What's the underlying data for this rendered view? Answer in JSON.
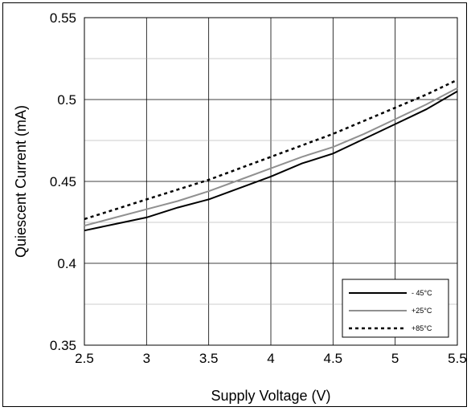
{
  "chart_data": {
    "type": "line",
    "xlabel": "Supply Voltage (V)",
    "ylabel": "Quiescent Current (mA)",
    "xlim": [
      2.5,
      5.5
    ],
    "ylim": [
      0.35,
      0.55
    ],
    "xticks": [
      "2.5",
      "3",
      "3.5",
      "4",
      "4.5",
      "5",
      "5.5"
    ],
    "yticks": [
      "0.35",
      "0.4",
      "0.45",
      "0.5",
      "0.55"
    ],
    "grid": true,
    "legend_position": "bottom-right",
    "series": [
      {
        "name": "- 45°C",
        "color": "#000000",
        "dash": "solid",
        "x": [
          2.5,
          2.75,
          3.0,
          3.25,
          3.5,
          3.75,
          4.0,
          4.25,
          4.5,
          4.75,
          5.0,
          5.25,
          5.5
        ],
        "y": [
          0.42,
          0.424,
          0.428,
          0.434,
          0.439,
          0.446,
          0.453,
          0.461,
          0.467,
          0.476,
          0.485,
          0.494,
          0.505
        ]
      },
      {
        "name": "+25°C",
        "color": "#909090",
        "dash": "solid",
        "x": [
          2.5,
          2.75,
          3.0,
          3.25,
          3.5,
          3.75,
          4.0,
          4.25,
          4.5,
          4.75,
          5.0,
          5.25,
          5.5
        ],
        "y": [
          0.423,
          0.428,
          0.433,
          0.438,
          0.444,
          0.451,
          0.458,
          0.465,
          0.471,
          0.479,
          0.488,
          0.497,
          0.507
        ]
      },
      {
        "name": "+85°C",
        "color": "#000000",
        "dash": "dotted",
        "x": [
          2.5,
          2.75,
          3.0,
          3.25,
          3.5,
          3.75,
          4.0,
          4.25,
          4.5,
          4.75,
          5.0,
          5.25,
          5.5
        ],
        "y": [
          0.427,
          0.433,
          0.439,
          0.445,
          0.451,
          0.458,
          0.465,
          0.472,
          0.479,
          0.487,
          0.495,
          0.503,
          0.512
        ]
      }
    ]
  }
}
